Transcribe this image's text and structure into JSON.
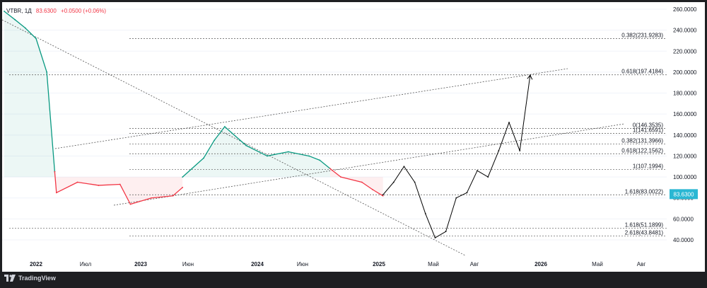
{
  "legend": {
    "ticker": "VTBR, 1Д",
    "price": "83.6300",
    "change": "+0.0500 (+0.06%)"
  },
  "footer": {
    "brand": "TradingView",
    "logo_icon": "tradingview-logo-icon"
  },
  "colors": {
    "up": "#089981",
    "down": "#f23645",
    "projection": "#000000",
    "price_tag": "#2ab7d3",
    "grid": "#f0f3fa"
  },
  "chart_data": {
    "type": "line",
    "title": "",
    "xlabel": "",
    "ylabel": "",
    "ylim": [
      40,
      260
    ],
    "y_ticks": [
      "260.0000",
      "240.0000",
      "220.0000",
      "200.0000",
      "180.0000",
      "160.0000",
      "140.0000",
      "120.0000",
      "100.0000",
      "80.0000",
      "60.0000",
      "40.0000"
    ],
    "x_ticks": [
      "2022",
      "Июл",
      "2023",
      "Июн",
      "2024",
      "Июн",
      "2025",
      "Май",
      "Авг",
      "2026",
      "Май",
      "Авг"
    ],
    "last_price_label": "83.6300",
    "series": [
      {
        "color": "#089981",
        "x": [
          "2021-10",
          "2021-11",
          "2021-12",
          "2022-01",
          "2022-02",
          "2022-02-24"
        ],
        "y": [
          258,
          250,
          242,
          232,
          200,
          105
        ]
      },
      {
        "color": "#f23645",
        "x": [
          "2022-02-24",
          "2022-03",
          "2022-05",
          "2022-07",
          "2022-09",
          "2022-10",
          "2022-12",
          "2023-02",
          "2023-03"
        ],
        "y": [
          105,
          85,
          95,
          92,
          93,
          74,
          80,
          82,
          90
        ]
      },
      {
        "color": "#089981",
        "x": [
          "2023-03",
          "2023-05",
          "2023-06",
          "2023-07",
          "2023-09",
          "2023-11",
          "2024-01",
          "2024-03",
          "2024-04",
          "2024-05"
        ],
        "y": [
          100,
          118,
          135,
          148,
          130,
          120,
          124,
          120,
          116,
          108
        ]
      },
      {
        "color": "#f23645",
        "x": [
          "2024-05",
          "2024-06",
          "2024-08",
          "2024-09",
          "2024-10"
        ],
        "y": [
          108,
          100,
          95,
          88,
          82
        ]
      },
      {
        "color": "#000000",
        "x": [
          "2024-10",
          "2024-11",
          "2024-12",
          "2025-01",
          "2025-02",
          "2025-03",
          "2025-04",
          "2025-05",
          "2025-06",
          "2025-07",
          "2025-08",
          "2025-09",
          "2025-10",
          "2025-11",
          "2025-12"
        ],
        "y": [
          83,
          95,
          110,
          95,
          65,
          42,
          48,
          80,
          85,
          106,
          100,
          125,
          152,
          125,
          197
        ]
      }
    ],
    "fib_levels": [
      {
        "label": "0.382(231.9283)",
        "value": 231.9283
      },
      {
        "label": "0.618(197.4184)",
        "value": 197.4184
      },
      {
        "label": "0(146.3535)",
        "value": 146.3535
      },
      {
        "label": "1(141.6591)",
        "value": 141.6591
      },
      {
        "label": "0.382(131.3966)",
        "value": 131.3966
      },
      {
        "label": "0.618(122.1562)",
        "value": 122.1562
      },
      {
        "label": "1(107.1994)",
        "value": 107.1994
      },
      {
        "label": "1.618(83.0022)",
        "value": 83.0022
      },
      {
        "label": "1.618(51.1899)",
        "value": 51.1899
      },
      {
        "label": "2.618(43.8481)",
        "value": 43.8481
      }
    ]
  }
}
